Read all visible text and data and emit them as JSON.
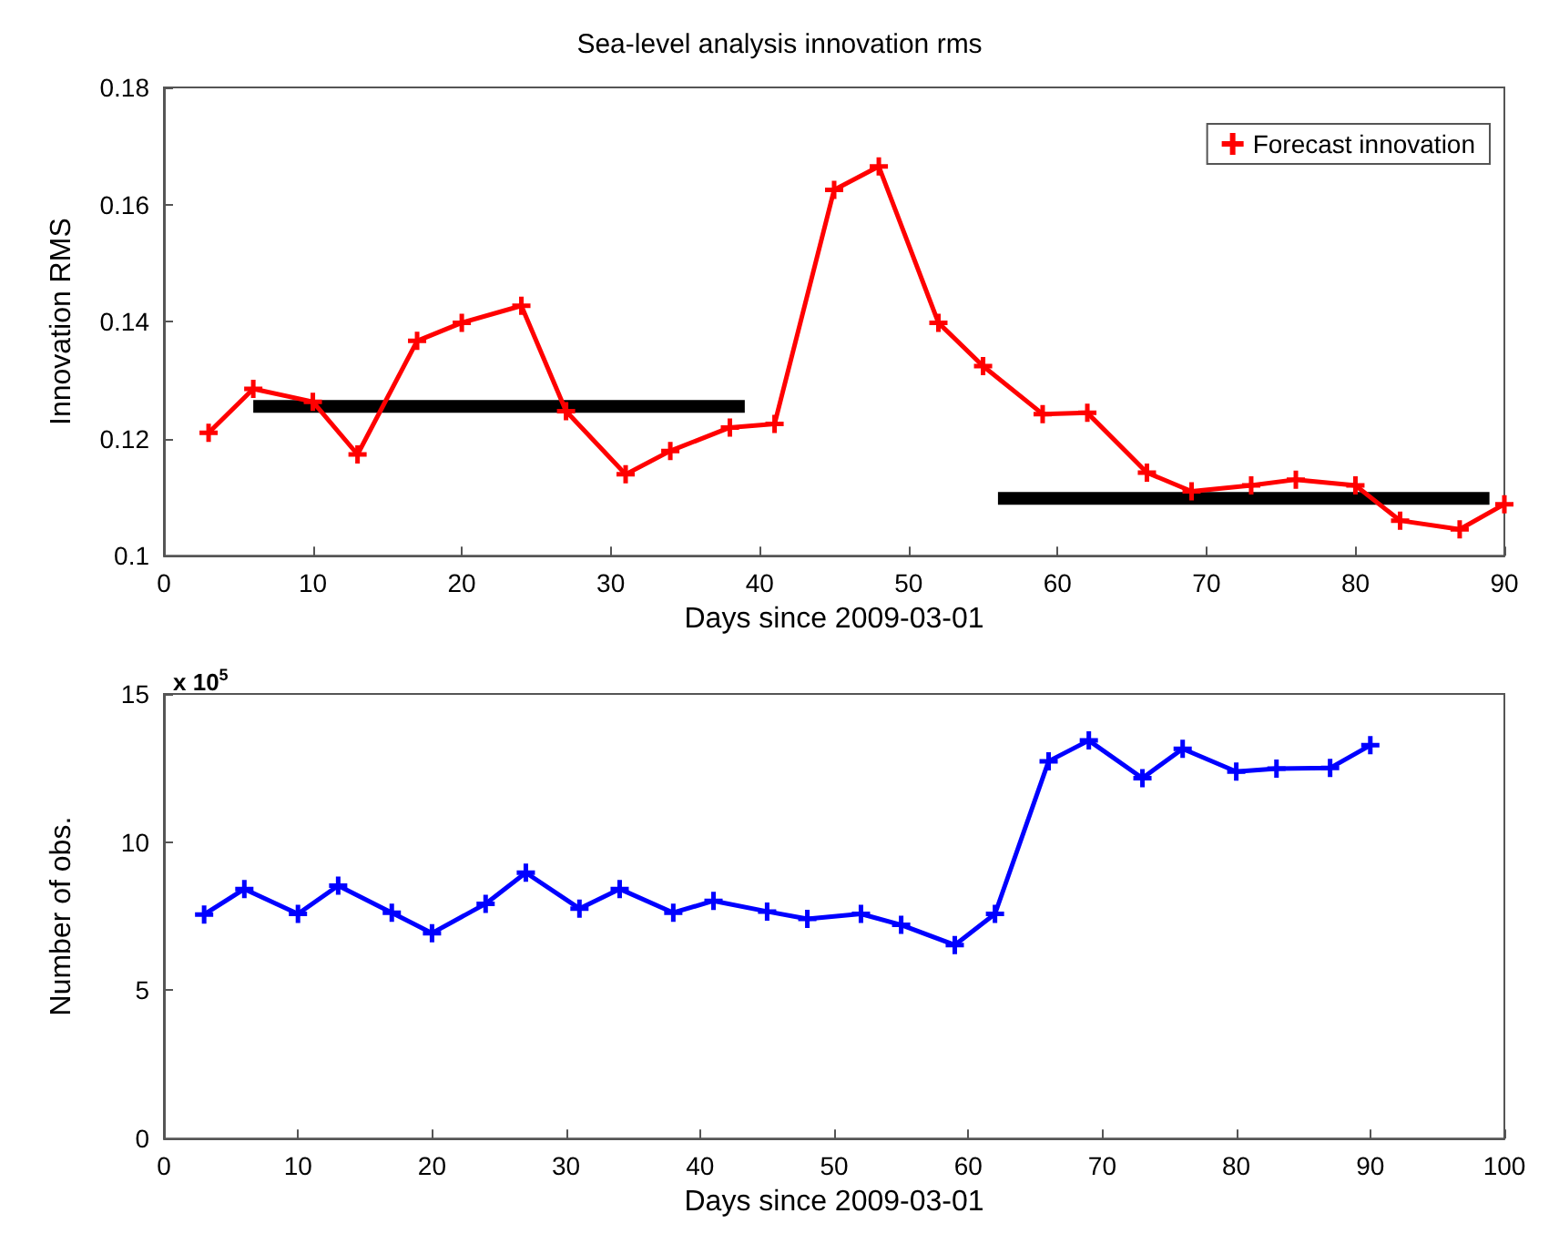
{
  "chart_data": [
    {
      "type": "line",
      "title": "Sea-level analysis innovation rms",
      "xlabel": "Days since 2009-03-01",
      "ylabel": "Innovation RMS",
      "x": [
        3,
        6,
        10,
        13,
        17,
        20,
        24,
        27,
        31,
        34,
        38,
        41,
        45,
        48,
        52,
        55,
        59,
        62,
        66,
        69,
        73,
        76,
        80,
        83,
        87,
        90
      ],
      "series": [
        {
          "name": "Forecast innovation",
          "color": "#ff0000",
          "marker": "cross",
          "values": [
            0.121,
            0.1285,
            0.1263,
            0.1173,
            0.1367,
            0.1398,
            0.1427,
            0.1247,
            0.1139,
            0.1179,
            0.1219,
            0.1225,
            0.1625,
            0.1665,
            0.1398,
            0.1324,
            0.1242,
            0.1244,
            0.1142,
            0.111,
            0.112,
            0.113,
            0.112,
            0.106,
            0.1045,
            0.1088
          ]
        },
        {
          "color": "#000000",
          "marker": "none",
          "x": [
            6,
            39
          ],
          "values": [
            0.1255,
            0.1255
          ]
        },
        {
          "color": "#000000",
          "marker": "none",
          "x": [
            56,
            89
          ],
          "values": [
            0.1098,
            0.1098
          ]
        }
      ],
      "xlim": [
        0,
        90
      ],
      "xticks": [
        0,
        10,
        20,
        30,
        40,
        50,
        60,
        70,
        80,
        90
      ],
      "ylim": [
        0.1,
        0.18
      ],
      "yticks": [
        0.1,
        0.12,
        0.14,
        0.16,
        0.18
      ],
      "grid": false,
      "legend": "top right",
      "line_style": "solid"
    },
    {
      "type": "line",
      "xlabel": "Days since 2009-03-01",
      "ylabel": "Number of obs.",
      "annotations": [
        "x 10$^{5}$"
      ],
      "x": [
        3,
        6,
        10,
        13,
        17,
        20,
        24,
        27,
        31,
        34,
        38,
        41,
        45,
        48,
        52,
        55,
        59,
        62,
        66,
        69,
        73,
        76,
        80,
        83,
        87,
        90
      ],
      "series": [
        {
          "color": "#0000ff",
          "values": [
            7.56,
            8.42,
            7.58,
            8.53,
            7.62,
            6.93,
            7.92,
            8.97,
            7.76,
            8.42,
            7.62,
            8.02,
            7.66,
            7.41,
            7.58,
            7.21,
            6.53,
            7.58,
            12.73,
            13.43,
            12.16,
            13.15,
            12.38,
            12.48,
            12.5,
            13.27
          ]
        }
      ],
      "xlim": [
        0,
        100
      ],
      "xticks": [
        0,
        10,
        20,
        30,
        40,
        50,
        60,
        70,
        80,
        90,
        100
      ],
      "ylim": [
        0,
        15
      ],
      "yticks": [
        0,
        5,
        10,
        15
      ],
      "grid": false,
      "legend": false,
      "marker": "cross",
      "line_style": "solid"
    }
  ]
}
